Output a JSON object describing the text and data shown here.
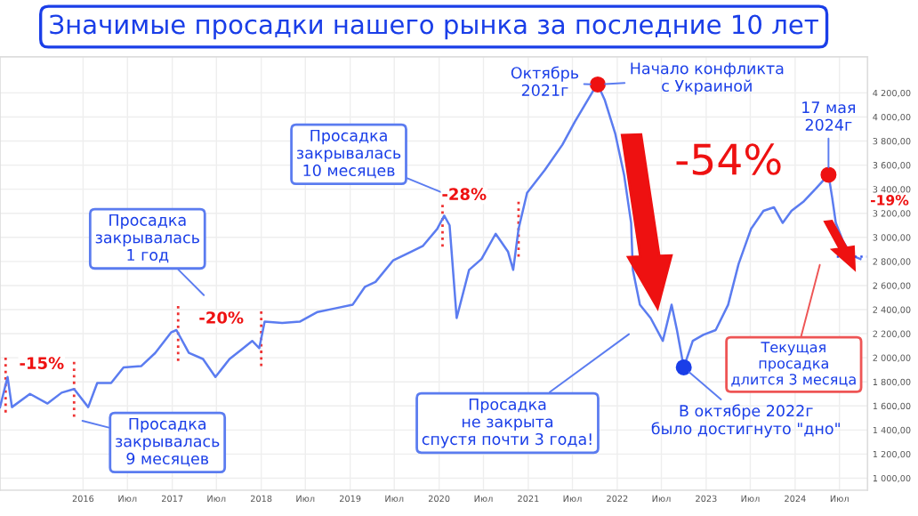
{
  "chart_data": {
    "type": "line",
    "title": "Значимые просадки нашего рынка за последние 10 лет",
    "x": [
      "2015-01-25",
      "2015-02-25",
      "2015-03-15",
      "2015-05-28",
      "2015-08-08",
      "2015-10-05",
      "2015-11-25",
      "2016-01-22",
      "2016-02-28",
      "2016-04-25",
      "2016-06-15",
      "2016-08-26",
      "2016-10-23",
      "2016-12-27",
      "2017-01-18",
      "2017-03-10",
      "2017-05-07",
      "2017-06-27",
      "2017-08-24",
      "2017-10-13",
      "2017-11-25",
      "2017-12-24",
      "2018-01-15",
      "2018-03-28",
      "2018-06-08",
      "2018-08-20",
      "2018-10-31",
      "2019-01-11",
      "2019-03-03",
      "2019-04-15",
      "2019-06-27",
      "2019-09-07",
      "2019-10-27",
      "2019-12-24",
      "2020-01-22",
      "2020-02-13",
      "2020-03-13",
      "2020-05-03",
      "2020-06-23",
      "2020-08-20",
      "2020-10-10",
      "2020-10-31",
      "2020-11-22",
      "2020-12-27",
      "2021-03-10",
      "2021-05-21",
      "2021-07-11",
      "2021-09-22",
      "2021-10-13",
      "2021-11-11",
      "2021-12-24",
      "2022-01-29",
      "2022-02-27",
      "2022-03-06",
      "2022-04-04",
      "2022-05-18",
      "2022-07-07",
      "2022-08-12",
      "2022-09-03",
      "2022-10-01",
      "2022-11-07",
      "2022-12-20",
      "2023-02-09",
      "2023-04-01",
      "2023-05-14",
      "2023-07-04",
      "2023-08-24",
      "2023-10-06",
      "2023-11-11",
      "2023-12-17",
      "2024-02-06",
      "2024-03-28",
      "2024-05-17",
      "2024-06-01",
      "2024-06-16",
      "2024-07-15",
      "2024-08-20",
      "2024-09-25"
    ],
    "series": [
      {
        "color": "#5b7cf0",
        "values": [
          1590,
          1840,
          1590,
          1700,
          1620,
          1710,
          1740,
          1590,
          1790,
          1790,
          1920,
          1930,
          2040,
          2210,
          2230,
          2040,
          1990,
          1840,
          1990,
          2070,
          2140,
          2080,
          2300,
          2290,
          2300,
          2380,
          2410,
          2440,
          2590,
          2630,
          2810,
          2880,
          2930,
          3070,
          3180,
          3100,
          2330,
          2730,
          2820,
          3030,
          2880,
          2730,
          3070,
          3370,
          3560,
          3770,
          3960,
          4210,
          4270,
          4140,
          3860,
          3520,
          3120,
          2730,
          2440,
          2330,
          2140,
          2440,
          2230,
          1920,
          2140,
          2190,
          2230,
          2440,
          2780,
          3070,
          3220,
          3250,
          3120,
          3220,
          3300,
          3410,
          3520,
          3330,
          3120,
          2970,
          2850,
          2820
        ]
      },
      {
        "type": "scatter",
        "x": [
          "2021-10-13",
          "2022-10-01",
          "2024-05-17"
        ],
        "values": [
          4270,
          1920,
          3520
        ],
        "colors": [
          "#ee1111",
          "#1a3ee8",
          "#ee1111"
        ]
      },
      {
        "type": "line",
        "line_style": "dotted",
        "color": "#3355ee",
        "x": [
          "2024-06-20",
          "2024-10-20"
        ],
        "values": [
          2840,
          2840
        ]
      }
    ],
    "xlim": [
      "2015-01-25",
      "2024-10-24"
    ],
    "xticks": [
      {
        "value": "2016-01-01",
        "label": "2016"
      },
      {
        "value": "2016-07-01",
        "label": "Июл"
      },
      {
        "value": "2017-01-01",
        "label": "2017"
      },
      {
        "value": "2017-07-01",
        "label": "Июл"
      },
      {
        "value": "2018-01-01",
        "label": "2018"
      },
      {
        "value": "2018-07-01",
        "label": "Июл"
      },
      {
        "value": "2019-01-01",
        "label": "2019"
      },
      {
        "value": "2019-07-01",
        "label": "Июл"
      },
      {
        "value": "2020-01-01",
        "label": "2020"
      },
      {
        "value": "2020-07-01",
        "label": "Июл"
      },
      {
        "value": "2021-01-01",
        "label": "2021"
      },
      {
        "value": "2021-07-01",
        "label": "Июл"
      },
      {
        "value": "2022-01-01",
        "label": "2022"
      },
      {
        "value": "2022-07-01",
        "label": "Июл"
      },
      {
        "value": "2023-01-01",
        "label": "2023"
      },
      {
        "value": "2023-07-01",
        "label": "Июл"
      },
      {
        "value": "2024-01-01",
        "label": "2024"
      },
      {
        "value": "2024-07-01",
        "label": "Июл"
      }
    ],
    "ylim": [
      900,
      4500
    ],
    "yticks": [
      {
        "value": 1000,
        "label": "1 000,00"
      },
      {
        "value": 1200,
        "label": "1 200,00"
      },
      {
        "value": 1400,
        "label": "1 400,00"
      },
      {
        "value": 1600,
        "label": "1 600,00"
      },
      {
        "value": 1800,
        "label": "1 800,00"
      },
      {
        "value": 2000,
        "label": "2 000,00"
      },
      {
        "value": 2200,
        "label": "2 200,00"
      },
      {
        "value": 2400,
        "label": "2 400,00"
      },
      {
        "value": 2600,
        "label": "2 600,00"
      },
      {
        "value": 2800,
        "label": "2 800,00"
      },
      {
        "value": 3000,
        "label": "3 000,00"
      },
      {
        "value": 3200,
        "label": "3 200,00"
      },
      {
        "value": 3400,
        "label": "3 400,00"
      },
      {
        "value": 3600,
        "label": "3 600,00"
      },
      {
        "value": 3800,
        "label": "3 800,00"
      },
      {
        "value": 4000,
        "label": "4 000,00"
      },
      {
        "value": 4200,
        "label": "4 200,00"
      }
    ],
    "grid": true,
    "ref_lines": [
      {
        "axis": "x",
        "value": "2015-02-17",
        "color": "#ee3333",
        "line_style": "dotted"
      },
      {
        "axis": "x",
        "value": "2015-11-25",
        "color": "#ee3333",
        "line_style": "dotted"
      },
      {
        "axis": "x",
        "value": "2017-01-25",
        "color": "#ee3333",
        "line_style": "dotted"
      },
      {
        "axis": "x",
        "value": "2018-01-01",
        "color": "#ee3333",
        "line_style": "dotted"
      },
      {
        "axis": "x",
        "value": "2020-01-15",
        "color": "#ee3333",
        "line_style": "dotted"
      },
      {
        "axis": "x",
        "value": "2020-11-22",
        "color": "#ee3333",
        "line_style": "dotted"
      }
    ],
    "annotations": [
      "Просадка\nзакрывалась\n9 месяцев",
      "Просадка\nзакрывалась\n1 год",
      "Просадка\nзакрывалась\n10 месяцев",
      "Просадка\nне закрыта\nспустя почти 3 года!",
      "Текущая\nпросадка\nдлится 3 месяца",
      {
        "text": "Октябрь\n2021г",
        "x": "2021-10-13",
        "y": 4270
      },
      {
        "text": "Начало конфликта\nс Украиной",
        "x": "2021-10-13",
        "y": 4270
      },
      {
        "text": "17 мая\n2024г",
        "x": "2024-05-17",
        "y": 3520
      },
      {
        "text": "В октябре 2022г\nбыло достигнуто \"дно\"",
        "x": "2022-10-01",
        "y": 1920
      },
      "-15%",
      "-20%",
      "-28%",
      "-54%",
      "-19%"
    ]
  }
}
